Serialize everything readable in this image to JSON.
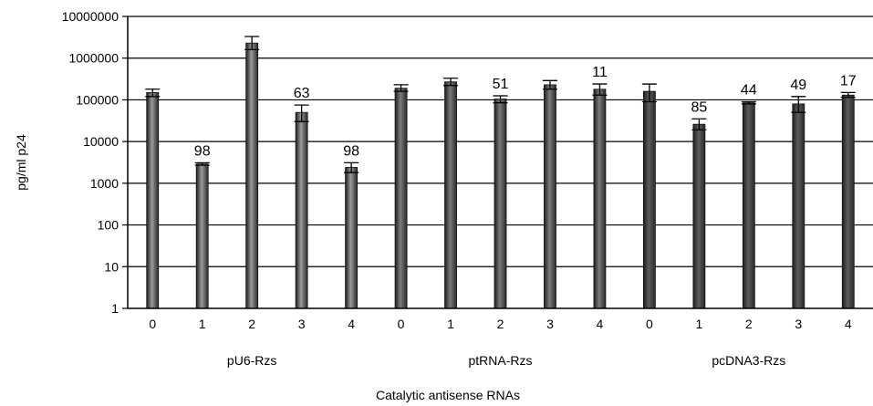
{
  "chart_data": {
    "type": "bar",
    "title": "",
    "xlabel": "Catalytic antisense RNAs",
    "ylabel": "pg/ml p24",
    "y_scale": "log",
    "ylim": [
      1,
      10000000
    ],
    "y_ticks": [
      "1",
      "10",
      "100",
      "1000",
      "10000",
      "100000",
      "1000000",
      "10000000"
    ],
    "grid": "horizontal major gridlines",
    "legend": "none",
    "groups": [
      {
        "name": "pU6-Rzs",
        "color": "#9a9a9a",
        "bars": [
          {
            "x": "0",
            "value": 150000,
            "err_low": 120000,
            "err_high": 180000,
            "label": ""
          },
          {
            "x": "1",
            "value": 2900,
            "err_low": 2700,
            "err_high": 3100,
            "label": "98"
          },
          {
            "x": "2",
            "value": 2300000,
            "err_low": 1600000,
            "err_high": 3300000,
            "label": ""
          },
          {
            "x": "3",
            "value": 50000,
            "err_low": 30000,
            "err_high": 75000,
            "label": "63"
          },
          {
            "x": "4",
            "value": 2400,
            "err_low": 1800,
            "err_high": 3100,
            "label": "98"
          }
        ]
      },
      {
        "name": "ptRNA-Rzs",
        "color": "#7c7c7c",
        "bars": [
          {
            "x": "0",
            "value": 190000,
            "err_low": 160000,
            "err_high": 230000,
            "label": ""
          },
          {
            "x": "1",
            "value": 270000,
            "err_low": 220000,
            "err_high": 330000,
            "label": ""
          },
          {
            "x": "2",
            "value": 105000,
            "err_low": 85000,
            "err_high": 125000,
            "label": "51"
          },
          {
            "x": "3",
            "value": 230000,
            "err_low": 180000,
            "err_high": 290000,
            "label": ""
          },
          {
            "x": "4",
            "value": 180000,
            "err_low": 130000,
            "err_high": 240000,
            "label": "11"
          }
        ]
      },
      {
        "name": "pcDNA3-Rzs",
        "color": "#5c5c5c",
        "bars": [
          {
            "x": "0",
            "value": 160000,
            "err_low": 90000,
            "err_high": 240000,
            "label": ""
          },
          {
            "x": "1",
            "value": 26000,
            "err_low": 19000,
            "err_high": 35000,
            "label": "85"
          },
          {
            "x": "2",
            "value": 85000,
            "err_low": 80000,
            "err_high": 90000,
            "label": "44"
          },
          {
            "x": "3",
            "value": 80000,
            "err_low": 50000,
            "err_high": 120000,
            "label": "49"
          },
          {
            "x": "4",
            "value": 130000,
            "err_low": 115000,
            "err_high": 150000,
            "label": "17"
          }
        ]
      }
    ]
  }
}
